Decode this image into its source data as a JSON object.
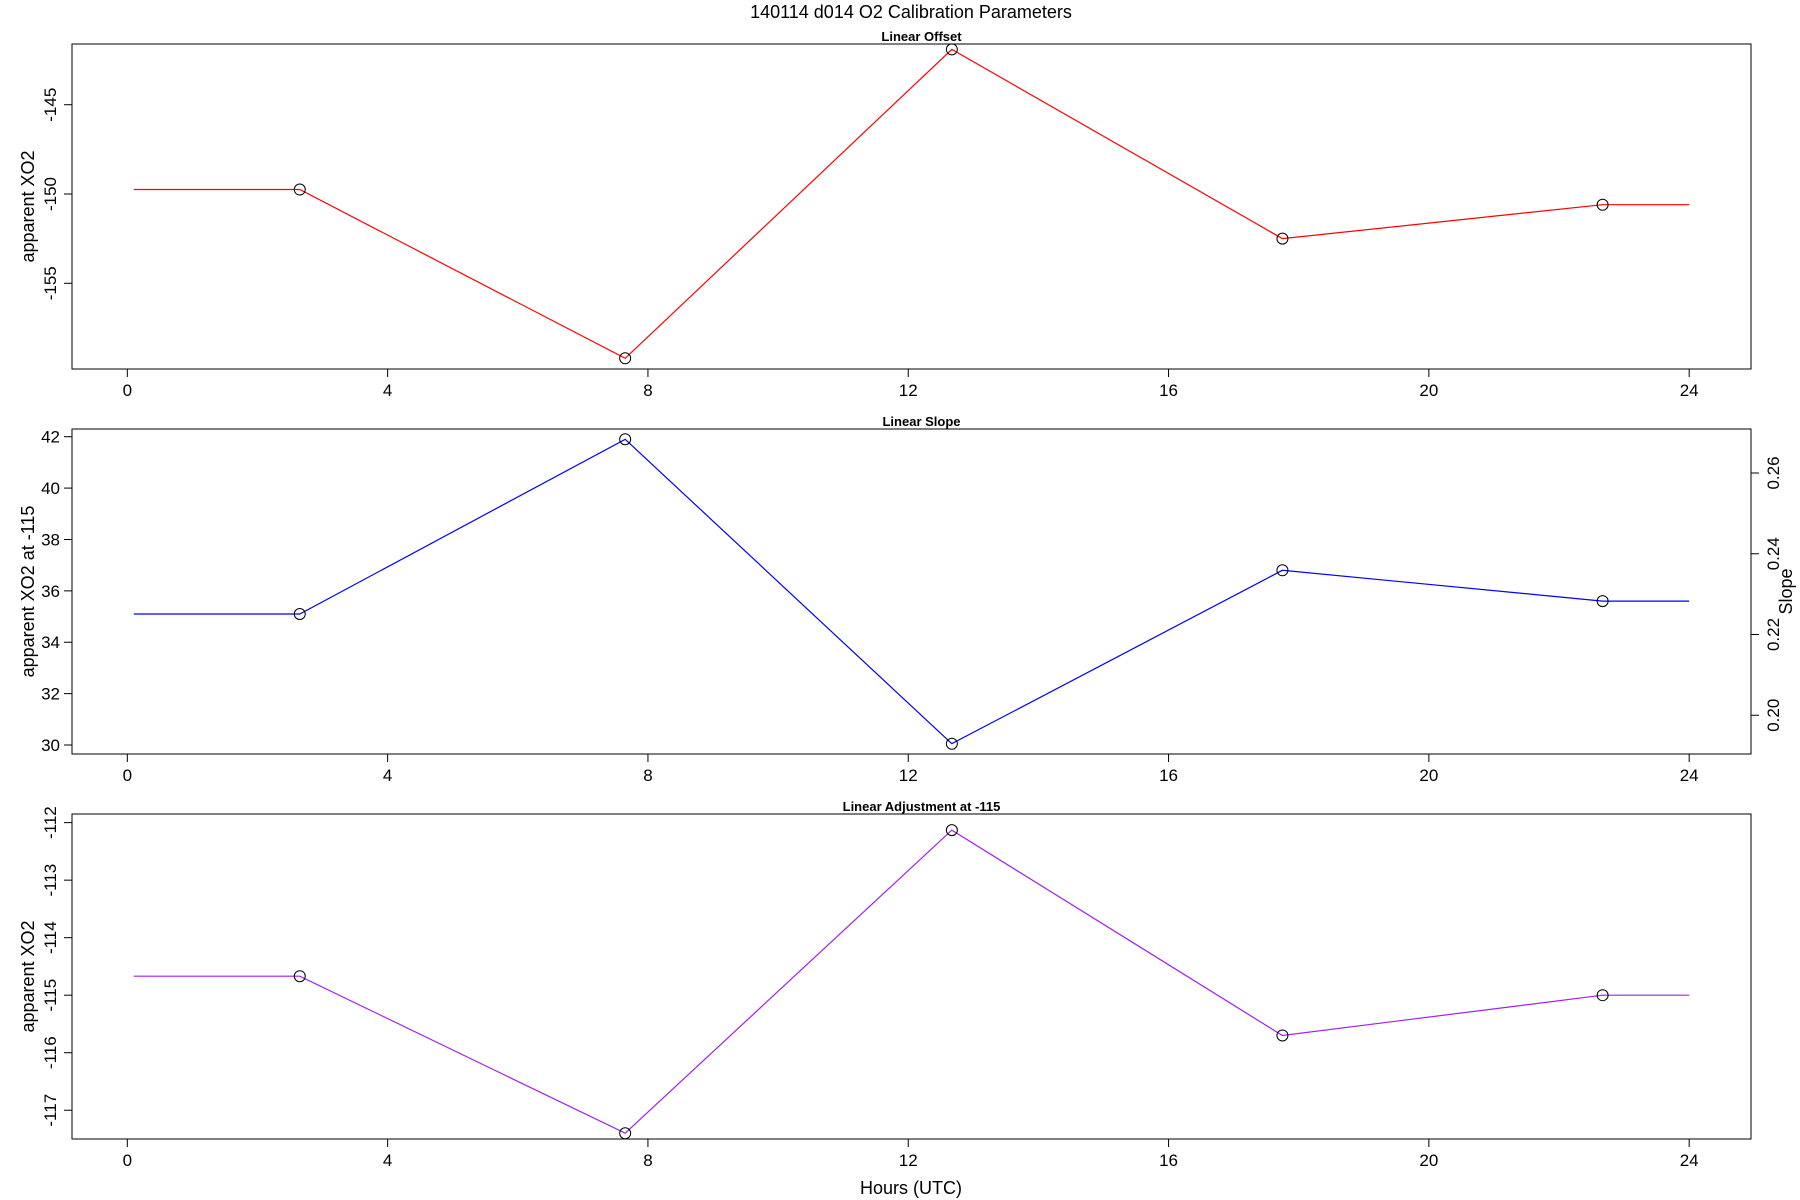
{
  "title": "140114   d014   O2 Calibration Parameters",
  "xlabel": "Hours (UTC)",
  "chart_data": [
    {
      "type": "line",
      "title": "Linear Offset",
      "ylabel": "apparent XO2",
      "color": "#ff0000",
      "x": [
        0.1,
        2.65,
        7.65,
        12.67,
        17.75,
        22.67,
        24.0
      ],
      "y": [
        -149.75,
        -149.75,
        -159.2,
        -141.9,
        -152.5,
        -150.6,
        -150.6
      ],
      "markers": [
        false,
        true,
        true,
        true,
        true,
        true,
        false
      ],
      "xlim": [
        -0.85,
        24.95
      ],
      "ylim": [
        -159.8,
        -141.6
      ],
      "xticks": [
        0,
        4,
        8,
        12,
        16,
        20,
        24
      ],
      "yticks": [
        -155,
        -150,
        -145
      ],
      "ytick_rotation": "vertical"
    },
    {
      "type": "line",
      "title": "Linear Slope",
      "ylabel": "apparent XO2 at -115",
      "y2label": "Slope",
      "color": "#0000ff",
      "x": [
        0.1,
        2.65,
        7.65,
        12.67,
        17.75,
        22.67,
        24.0
      ],
      "y": [
        35.1,
        35.1,
        41.9,
        30.05,
        36.8,
        35.6,
        35.6
      ],
      "markers": [
        false,
        true,
        true,
        true,
        true,
        true,
        false
      ],
      "xlim": [
        -0.85,
        24.95
      ],
      "ylim": [
        29.65,
        42.3
      ],
      "xticks": [
        0,
        4,
        8,
        12,
        16,
        20,
        24
      ],
      "yticks": [
        30,
        32,
        34,
        36,
        38,
        40,
        42
      ],
      "ytick_rotation": "horizontal",
      "y2lim": [
        0.1904,
        0.2709
      ],
      "y2ticks": [
        "0.20",
        "0.22",
        "0.24",
        "0.26"
      ]
    },
    {
      "type": "line",
      "title": "Linear Adjustment at -115",
      "ylabel": "apparent XO2",
      "color": "#a020f0",
      "x": [
        0.1,
        2.65,
        7.65,
        12.67,
        17.75,
        22.67,
        24.0
      ],
      "y": [
        -114.67,
        -114.67,
        -117.4,
        -112.13,
        -115.7,
        -115.0,
        -115.0
      ],
      "markers": [
        false,
        true,
        true,
        true,
        true,
        true,
        false
      ],
      "xlim": [
        -0.85,
        24.95
      ],
      "ylim": [
        -117.5,
        -111.85
      ],
      "xticks": [
        0,
        4,
        8,
        12,
        16,
        20,
        24
      ],
      "yticks": [
        -117,
        -116,
        -115,
        -114,
        -113,
        -112
      ],
      "ytick_rotation": "vertical"
    }
  ]
}
